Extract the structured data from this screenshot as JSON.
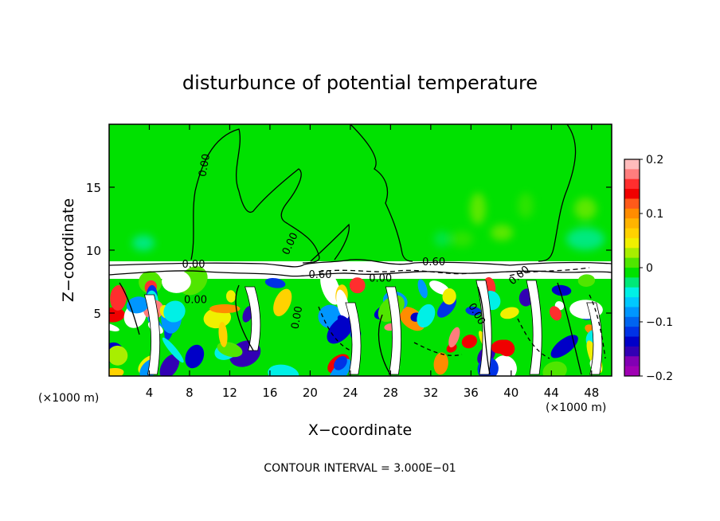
{
  "chart_data": {
    "type": "heatmap",
    "title": "disturbunce of potential temperature",
    "xlabel": "X−coordinate",
    "ylabel": "Z−coordinate",
    "x_unit": "(×1000 m)",
    "x_unit_right": "(×1000 m)",
    "footnote": "CONTOUR INTERVAL = 3.000E−01",
    "xlim": [
      0,
      50
    ],
    "ylim": [
      0,
      20
    ],
    "x_ticks": [
      4,
      8,
      12,
      16,
      20,
      24,
      28,
      32,
      36,
      40,
      44,
      48
    ],
    "y_ticks": [
      5,
      10,
      15
    ],
    "contour_interval": 0.3,
    "contour_labels": [
      {
        "text": "0.00",
        "x": 9.8,
        "y": 16.7,
        "angle": -80
      },
      {
        "text": "0.00",
        "x": 18.3,
        "y": 10.4,
        "angle": -65
      },
      {
        "text": "0.60",
        "x": 32.3,
        "y": 8.8,
        "angle": 0
      },
      {
        "text": "0.60",
        "x": 21.0,
        "y": 7.8,
        "angle": 0
      },
      {
        "text": "0.00",
        "x": 27.0,
        "y": 7.5,
        "angle": 0
      },
      {
        "text": "0.00",
        "x": 8.6,
        "y": 5.8,
        "angle": 0
      },
      {
        "text": "0.00",
        "x": 19.0,
        "y": 4.6,
        "angle": -80
      },
      {
        "text": "0.00",
        "x": 36.3,
        "y": 4.8,
        "angle": 60
      },
      {
        "text": "0.00",
        "x": 41.0,
        "y": 7.8,
        "angle": -40
      },
      {
        "text": "0.00",
        "x": 8.4,
        "y": 8.6,
        "angle": 0
      }
    ],
    "colorbar": {
      "range": [
        -0.2,
        0.2
      ],
      "tick_labels": [
        "0.2",
        "0.1",
        "0",
        "−0.1",
        "−0.2"
      ],
      "colors_top_to_bottom": [
        "#ffbcbc",
        "#ff7d7d",
        "#ff2e2e",
        "#f00000",
        "#ff5a1a",
        "#ff8c00",
        "#ffb400",
        "#ffd200",
        "#f0f000",
        "#a8ee00",
        "#50e600",
        "#00e100",
        "#00e878",
        "#00f0e6",
        "#00c8ff",
        "#0096ff",
        "#0064f0",
        "#0032e6",
        "#0000c8",
        "#3200b4",
        "#8200b4",
        "#a000b4"
      ]
    }
  }
}
